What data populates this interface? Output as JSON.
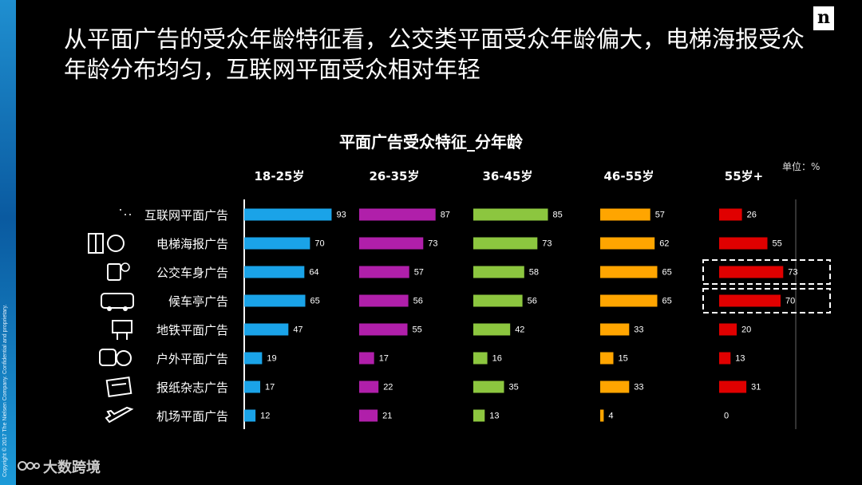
{
  "headline": "从平面广告的受众年龄特征看，公交类平面受众年龄偏大，电梯海报受众年龄分布均匀，互联网平面受众相对年轻",
  "copyright": "Copyright © 2017 The Nielsen Company. Confidential and proprietary.",
  "logo_letter": "n",
  "footer_text": "大数跨境",
  "chart_data": {
    "type": "bar",
    "title": "平面广告受众特征_分年龄",
    "unit_note": "单位：%",
    "categories": [
      "互联网平面广告",
      "电梯海报广告",
      "公交车身广告",
      "候车亭广告",
      "地铁平面广告",
      "户外平面广告",
      "报纸杂志广告",
      "机场平面广告"
    ],
    "series": [
      {
        "name": "18-25岁",
        "color": "#1aa3e8",
        "values": [
          93,
          70,
          64,
          65,
          47,
          19,
          17,
          12
        ]
      },
      {
        "name": "26-35岁",
        "color": "#b01faa",
        "values": [
          87,
          73,
          57,
          56,
          55,
          17,
          22,
          21
        ]
      },
      {
        "name": "36-45岁",
        "color": "#8cc63f",
        "values": [
          85,
          73,
          58,
          56,
          42,
          16,
          35,
          13
        ]
      },
      {
        "name": "46-55岁",
        "color": "#ffa500",
        "values": [
          57,
          62,
          65,
          65,
          33,
          15,
          33,
          4
        ]
      },
      {
        "name": "55岁+",
        "color": "#e00000",
        "values": [
          26,
          55,
          73,
          70,
          20,
          13,
          31,
          0
        ]
      }
    ],
    "highlighted": [
      {
        "series": "55岁+",
        "categories": [
          "公交车身广告",
          "候车亭广告"
        ]
      }
    ]
  },
  "icons": [
    "globe-icon",
    "elevator-icon",
    "bus-stop-icon",
    "bus-icon",
    "billboard-icon",
    "subway-icon",
    "newspaper-icon",
    "airplane-icon"
  ]
}
